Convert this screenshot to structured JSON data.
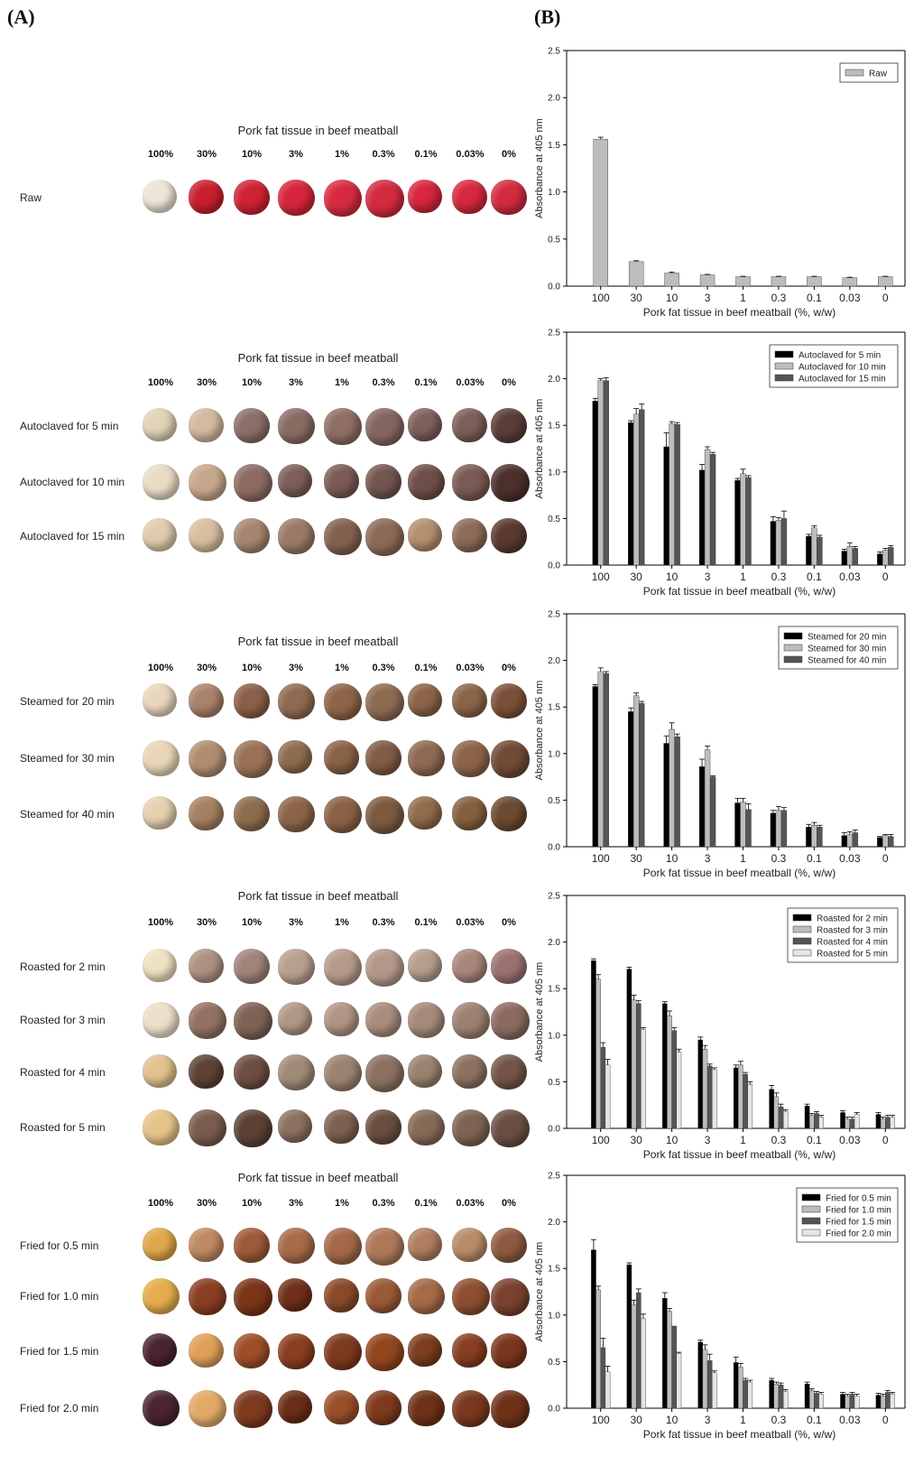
{
  "panel_a": {
    "label": "(A)",
    "photo_title": "Pork fat tissue  in beef meatball",
    "percentages": [
      "100%",
      "30%",
      "10%",
      "3%",
      "1%",
      "0.3%",
      "0.1%",
      "0.03%",
      "0%"
    ],
    "groups": [
      {
        "rows": [
          {
            "label": "Raw",
            "colors": [
              "#efe4d6",
              "#c91f2e",
              "#cf2233",
              "#d5253a",
              "#d82a3f",
              "#d42a3e",
              "#d8263d",
              "#d6283e",
              "#d32a3e"
            ]
          }
        ]
      },
      {
        "rows": [
          {
            "label": "Autoclaved for 5 min",
            "colors": [
              "#e2d3b6",
              "#d5b9a1",
              "#8c6e68",
              "#8a6b64",
              "#8e6e65",
              "#846660",
              "#7e5f5b",
              "#7e5e58",
              "#5a3c38"
            ]
          },
          {
            "label": "Autoclaved for 10 min",
            "colors": [
              "#e8dcc4",
              "#c7a78b",
              "#8c6b63",
              "#7d5e59",
              "#7b5a55",
              "#745650",
              "#6f4e48",
              "#7a5a52",
              "#4c302c"
            ]
          },
          {
            "label": "Autoclaved for 15 min",
            "colors": [
              "#e0ccad",
              "#d8bfa0",
              "#a68670",
              "#9a7a66",
              "#84614f",
              "#8c6a58",
              "#b58f70",
              "#8d6b58",
              "#5a3a30"
            ]
          }
        ]
      },
      {
        "rows": [
          {
            "label": "Steamed for 20 min",
            "colors": [
              "#ead6bd",
              "#a9826a",
              "#8b5f48",
              "#8f6a52",
              "#8e6448",
              "#8d6a52",
              "#8b6448",
              "#8a6448",
              "#7a5038"
            ]
          },
          {
            "label": "Steamed for 30 min",
            "colors": [
              "#e9d6b8",
              "#b08d70",
              "#9a7256",
              "#8f6c50",
              "#8a6246",
              "#805c44",
              "#8d6a52",
              "#8b6448",
              "#6f4a34"
            ]
          },
          {
            "label": "Steamed for 40 min",
            "colors": [
              "#e6d1b0",
              "#a48060",
              "#8d6c4d",
              "#8b6448",
              "#8a6146",
              "#7c5a40",
              "#8f6c4a",
              "#84603e",
              "#6b4a30"
            ]
          }
        ]
      },
      {
        "rows": [
          {
            "label": "Roasted for 2 min",
            "colors": [
              "#efe2c2",
              "#ad9283",
              "#a0847a",
              "#b8a090",
              "#b59b8b",
              "#b3988a",
              "#b59e8e",
              "#a8867c",
              "#9a7272"
            ]
          },
          {
            "label": "Roasted for 3 min",
            "colors": [
              "#ece0c8",
              "#927262",
              "#7d6256",
              "#b09888",
              "#b09484",
              "#a88c7c",
              "#a58a7a",
              "#9c8070",
              "#8a6a60"
            ]
          },
          {
            "label": "Roasted for 4 min",
            "colors": [
              "#e2c28f",
              "#5e4236",
              "#6e4e42",
              "#a08a78",
              "#9c8270",
              "#8c7060",
              "#9a826e",
              "#8e7060",
              "#745448"
            ]
          },
          {
            "label": "Roasted for 5 min",
            "colors": [
              "#e7c48a",
              "#7a5c4e",
              "#5c4034",
              "#8c7060",
              "#7e6050",
              "#6a4e40",
              "#866a58",
              "#7e6252",
              "#6a4e42"
            ]
          }
        ]
      },
      {
        "rows": [
          {
            "label": "Fried for 0.5 min",
            "colors": [
              "#e0a84a",
              "#c08a62",
              "#9e5a38",
              "#a86a48",
              "#a46848",
              "#ad7858",
              "#b07e60",
              "#b88c68",
              "#8e5a40"
            ]
          },
          {
            "label": "Fried for 1.0 min",
            "colors": [
              "#e5ad4c",
              "#8a3e22",
              "#7a3418",
              "#6e3018",
              "#8a4a2a",
              "#9a5a38",
              "#a56a48",
              "#8e4e30",
              "#7a4030"
            ]
          },
          {
            "label": "Fried for 1.5 min",
            "colors": [
              "#4a2432",
              "#e0a05a",
              "#9e4e28",
              "#8a3e1e",
              "#7e3a1c",
              "#92461e",
              "#7c3e1e",
              "#863e20",
              "#7a361c"
            ]
          },
          {
            "label": "Fried for 2.0 min",
            "colors": [
              "#4a2430",
              "#e2aa68",
              "#7e3a1e",
              "#6a2e16",
              "#9a4e2a",
              "#7e3a1c",
              "#6e3218",
              "#7a381e",
              "#6e3218"
            ]
          }
        ]
      }
    ]
  },
  "panel_b": {
    "label": "(B)"
  },
  "chart_data": [
    {
      "type": "bar",
      "categories": [
        "100",
        "30",
        "10",
        "3",
        "1",
        "0.3",
        "0.1",
        "0.03",
        "0"
      ],
      "series": [
        {
          "name": "Raw",
          "values": [
            1.56,
            0.26,
            0.14,
            0.12,
            0.1,
            0.1,
            0.1,
            0.09,
            0.1
          ],
          "errors": [
            0.02,
            0.01,
            0.01,
            0.005,
            0.005,
            0.005,
            0.005,
            0.005,
            0.005
          ]
        }
      ],
      "xlabel": "Pork fat tissue in beef meatball (%, w/w)",
      "ylabel": "Absorbance at 405 nm",
      "ylim": [
        0,
        2.5
      ],
      "yticks": [
        "0.0",
        "0.5",
        "1.0",
        "1.5",
        "2.0",
        "2.5"
      ],
      "colors": [
        "#bdbdbd"
      ],
      "legend": "top-right",
      "grid": false
    },
    {
      "type": "bar",
      "categories": [
        "100",
        "30",
        "10",
        "3",
        "1",
        "0.3",
        "0.1",
        "0.03",
        "0"
      ],
      "series": [
        {
          "name": "Autoclaved for 5 min",
          "values": [
            1.76,
            1.53,
            1.27,
            1.02,
            0.91,
            0.47,
            0.31,
            0.15,
            0.12
          ],
          "errors": [
            0.03,
            0.02,
            0.15,
            0.06,
            0.02,
            0.05,
            0.02,
            0.02,
            0.02
          ]
        },
        {
          "name": "Autoclaved for 10 min",
          "values": [
            1.98,
            1.62,
            1.52,
            1.24,
            0.98,
            0.48,
            0.4,
            0.2,
            0.16
          ],
          "errors": [
            0.02,
            0.06,
            0.02,
            0.03,
            0.05,
            0.03,
            0.02,
            0.04,
            0.02
          ]
        },
        {
          "name": "Autoclaved for 15 min",
          "values": [
            1.98,
            1.67,
            1.51,
            1.19,
            0.94,
            0.5,
            0.3,
            0.18,
            0.19
          ],
          "errors": [
            0.03,
            0.06,
            0.02,
            0.02,
            0.02,
            0.08,
            0.02,
            0.02,
            0.02
          ]
        }
      ],
      "xlabel": "Pork fat tissue in beef meatball (%, w/w)",
      "ylabel": "Absorbance at 405 nm",
      "ylim": [
        0,
        2.5
      ],
      "yticks": [
        "0.0",
        "0.5",
        "1.0",
        "1.5",
        "2.0",
        "2.5"
      ],
      "colors": [
        "#000000",
        "#bdbdbd",
        "#555555"
      ],
      "legend": "top-right",
      "grid": false
    },
    {
      "type": "bar",
      "categories": [
        "100",
        "30",
        "10",
        "3",
        "1",
        "0.3",
        "0.1",
        "0.03",
        "0"
      ],
      "series": [
        {
          "name": "Steamed for 20 min",
          "values": [
            1.72,
            1.45,
            1.11,
            0.86,
            0.47,
            0.36,
            0.21,
            0.12,
            0.1
          ],
          "errors": [
            0.02,
            0.04,
            0.08,
            0.08,
            0.05,
            0.03,
            0.03,
            0.03,
            0.01
          ]
        },
        {
          "name": "Steamed for 30 min",
          "values": [
            1.88,
            1.62,
            1.26,
            1.04,
            0.48,
            0.39,
            0.23,
            0.13,
            0.12
          ],
          "errors": [
            0.04,
            0.03,
            0.07,
            0.04,
            0.04,
            0.04,
            0.03,
            0.03,
            0.01
          ]
        },
        {
          "name": "Steamed for 40 min",
          "values": [
            1.86,
            1.54,
            1.18,
            0.75,
            0.4,
            0.39,
            0.21,
            0.15,
            0.11
          ],
          "errors": [
            0.02,
            0.02,
            0.03,
            0.01,
            0.06,
            0.03,
            0.02,
            0.03,
            0.02
          ]
        }
      ],
      "xlabel": "Pork fat tissue in beef meatball (%, w/w)",
      "ylabel": "Absorbance at 405 nm",
      "ylim": [
        0,
        2.5
      ],
      "yticks": [
        "0.0",
        "0.5",
        "1.0",
        "1.5",
        "2.0",
        "2.5"
      ],
      "colors": [
        "#000000",
        "#bdbdbd",
        "#555555"
      ],
      "legend": "top-right",
      "grid": false
    },
    {
      "type": "bar",
      "categories": [
        "100",
        "30",
        "10",
        "3",
        "1",
        "0.3",
        "0.1",
        "0.03",
        "0"
      ],
      "series": [
        {
          "name": "Roasted for 2 min",
          "values": [
            1.8,
            1.71,
            1.34,
            0.95,
            0.65,
            0.42,
            0.24,
            0.17,
            0.15
          ],
          "errors": [
            0.02,
            0.02,
            0.02,
            0.03,
            0.03,
            0.04,
            0.02,
            0.02,
            0.02
          ]
        },
        {
          "name": "Roasted for 3 min",
          "values": [
            1.6,
            1.38,
            1.21,
            0.85,
            0.68,
            0.34,
            0.14,
            0.1,
            0.1
          ],
          "errors": [
            0.05,
            0.05,
            0.05,
            0.04,
            0.04,
            0.04,
            0.02,
            0.02,
            0.02
          ]
        },
        {
          "name": "Roasted for 4 min",
          "values": [
            0.87,
            1.34,
            1.05,
            0.67,
            0.58,
            0.23,
            0.16,
            0.1,
            0.12
          ],
          "errors": [
            0.05,
            0.03,
            0.03,
            0.02,
            0.02,
            0.03,
            0.02,
            0.02,
            0.02
          ]
        },
        {
          "name": "Roasted for 5 min",
          "values": [
            0.68,
            1.06,
            0.82,
            0.63,
            0.47,
            0.18,
            0.12,
            0.15,
            0.12
          ],
          "errors": [
            0.06,
            0.02,
            0.03,
            0.02,
            0.03,
            0.02,
            0.02,
            0.02,
            0.02
          ]
        }
      ],
      "xlabel": "Pork fat tissue in beef meatball (%, w/w)",
      "ylabel": "Absorbance at 405 nm",
      "ylim": [
        0,
        2.5
      ],
      "yticks": [
        "0.0",
        "0.5",
        "1.0",
        "1.5",
        "2.0",
        "2.5"
      ],
      "colors": [
        "#000000",
        "#bdbdbd",
        "#555555",
        "#e6e6e6"
      ],
      "legend": "top-right",
      "grid": false
    },
    {
      "type": "bar",
      "categories": [
        "100",
        "30",
        "10",
        "3",
        "1",
        "0.3",
        "0.1",
        "0.03",
        "0"
      ],
      "series": [
        {
          "name": "Fried for 0.5 min",
          "values": [
            1.7,
            1.54,
            1.18,
            0.71,
            0.49,
            0.3,
            0.26,
            0.15,
            0.14
          ],
          "errors": [
            0.11,
            0.02,
            0.06,
            0.02,
            0.06,
            0.02,
            0.02,
            0.02,
            0.02
          ]
        },
        {
          "name": "Fried for 1.0 min",
          "values": [
            1.27,
            1.11,
            1.04,
            0.63,
            0.44,
            0.26,
            0.19,
            0.13,
            0.13
          ],
          "errors": [
            0.04,
            0.05,
            0.03,
            0.05,
            0.04,
            0.02,
            0.02,
            0.02,
            0.02
          ]
        },
        {
          "name": "Fried for 1.5 min",
          "values": [
            0.65,
            1.24,
            0.87,
            0.51,
            0.3,
            0.25,
            0.16,
            0.15,
            0.17
          ],
          "errors": [
            0.1,
            0.04,
            0.01,
            0.07,
            0.02,
            0.02,
            0.02,
            0.02,
            0.02
          ]
        },
        {
          "name": "Fried for 2.0 min",
          "values": [
            0.39,
            0.96,
            0.59,
            0.38,
            0.28,
            0.18,
            0.15,
            0.13,
            0.15
          ],
          "errors": [
            0.06,
            0.05,
            0.01,
            0.02,
            0.02,
            0.02,
            0.02,
            0.02,
            0.02
          ]
        }
      ],
      "xlabel": "Pork fat tissue in beef meatball (%, w/w)",
      "ylabel": "Absorbance at 405 nm",
      "ylim": [
        0,
        2.5
      ],
      "yticks": [
        "0.0",
        "0.5",
        "1.0",
        "1.5",
        "2.0",
        "2.5"
      ],
      "colors": [
        "#000000",
        "#bdbdbd",
        "#555555",
        "#e6e6e6"
      ],
      "legend": "top-right",
      "grid": false
    }
  ]
}
